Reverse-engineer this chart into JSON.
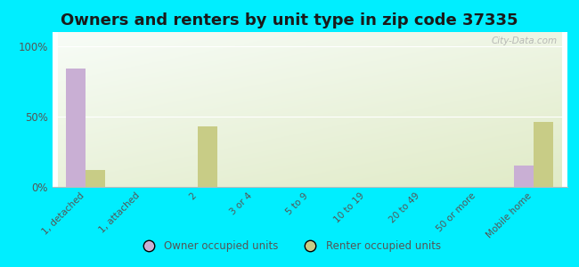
{
  "title": "Owners and renters by unit type in zip code 37335",
  "categories": [
    "1, detached",
    "1, attached",
    "2",
    "3 or 4",
    "5 to 9",
    "10 to 19",
    "20 to 49",
    "50 or more",
    "Mobile home"
  ],
  "owner_values": [
    84,
    0,
    0,
    0,
    0,
    0,
    0,
    0,
    15
  ],
  "renter_values": [
    12,
    0,
    43,
    0,
    0,
    0,
    0,
    0,
    46
  ],
  "owner_color": "#c9afd4",
  "renter_color": "#c8cc86",
  "background_color": "#00eeff",
  "yticks": [
    0,
    50,
    100
  ],
  "ylim": [
    0,
    110
  ],
  "bar_width": 0.35,
  "title_fontsize": 13,
  "legend_owner": "Owner occupied units",
  "legend_renter": "Renter occupied units",
  "watermark": "City-Data.com",
  "tick_color": "#555555",
  "title_color": "#1a1a1a"
}
